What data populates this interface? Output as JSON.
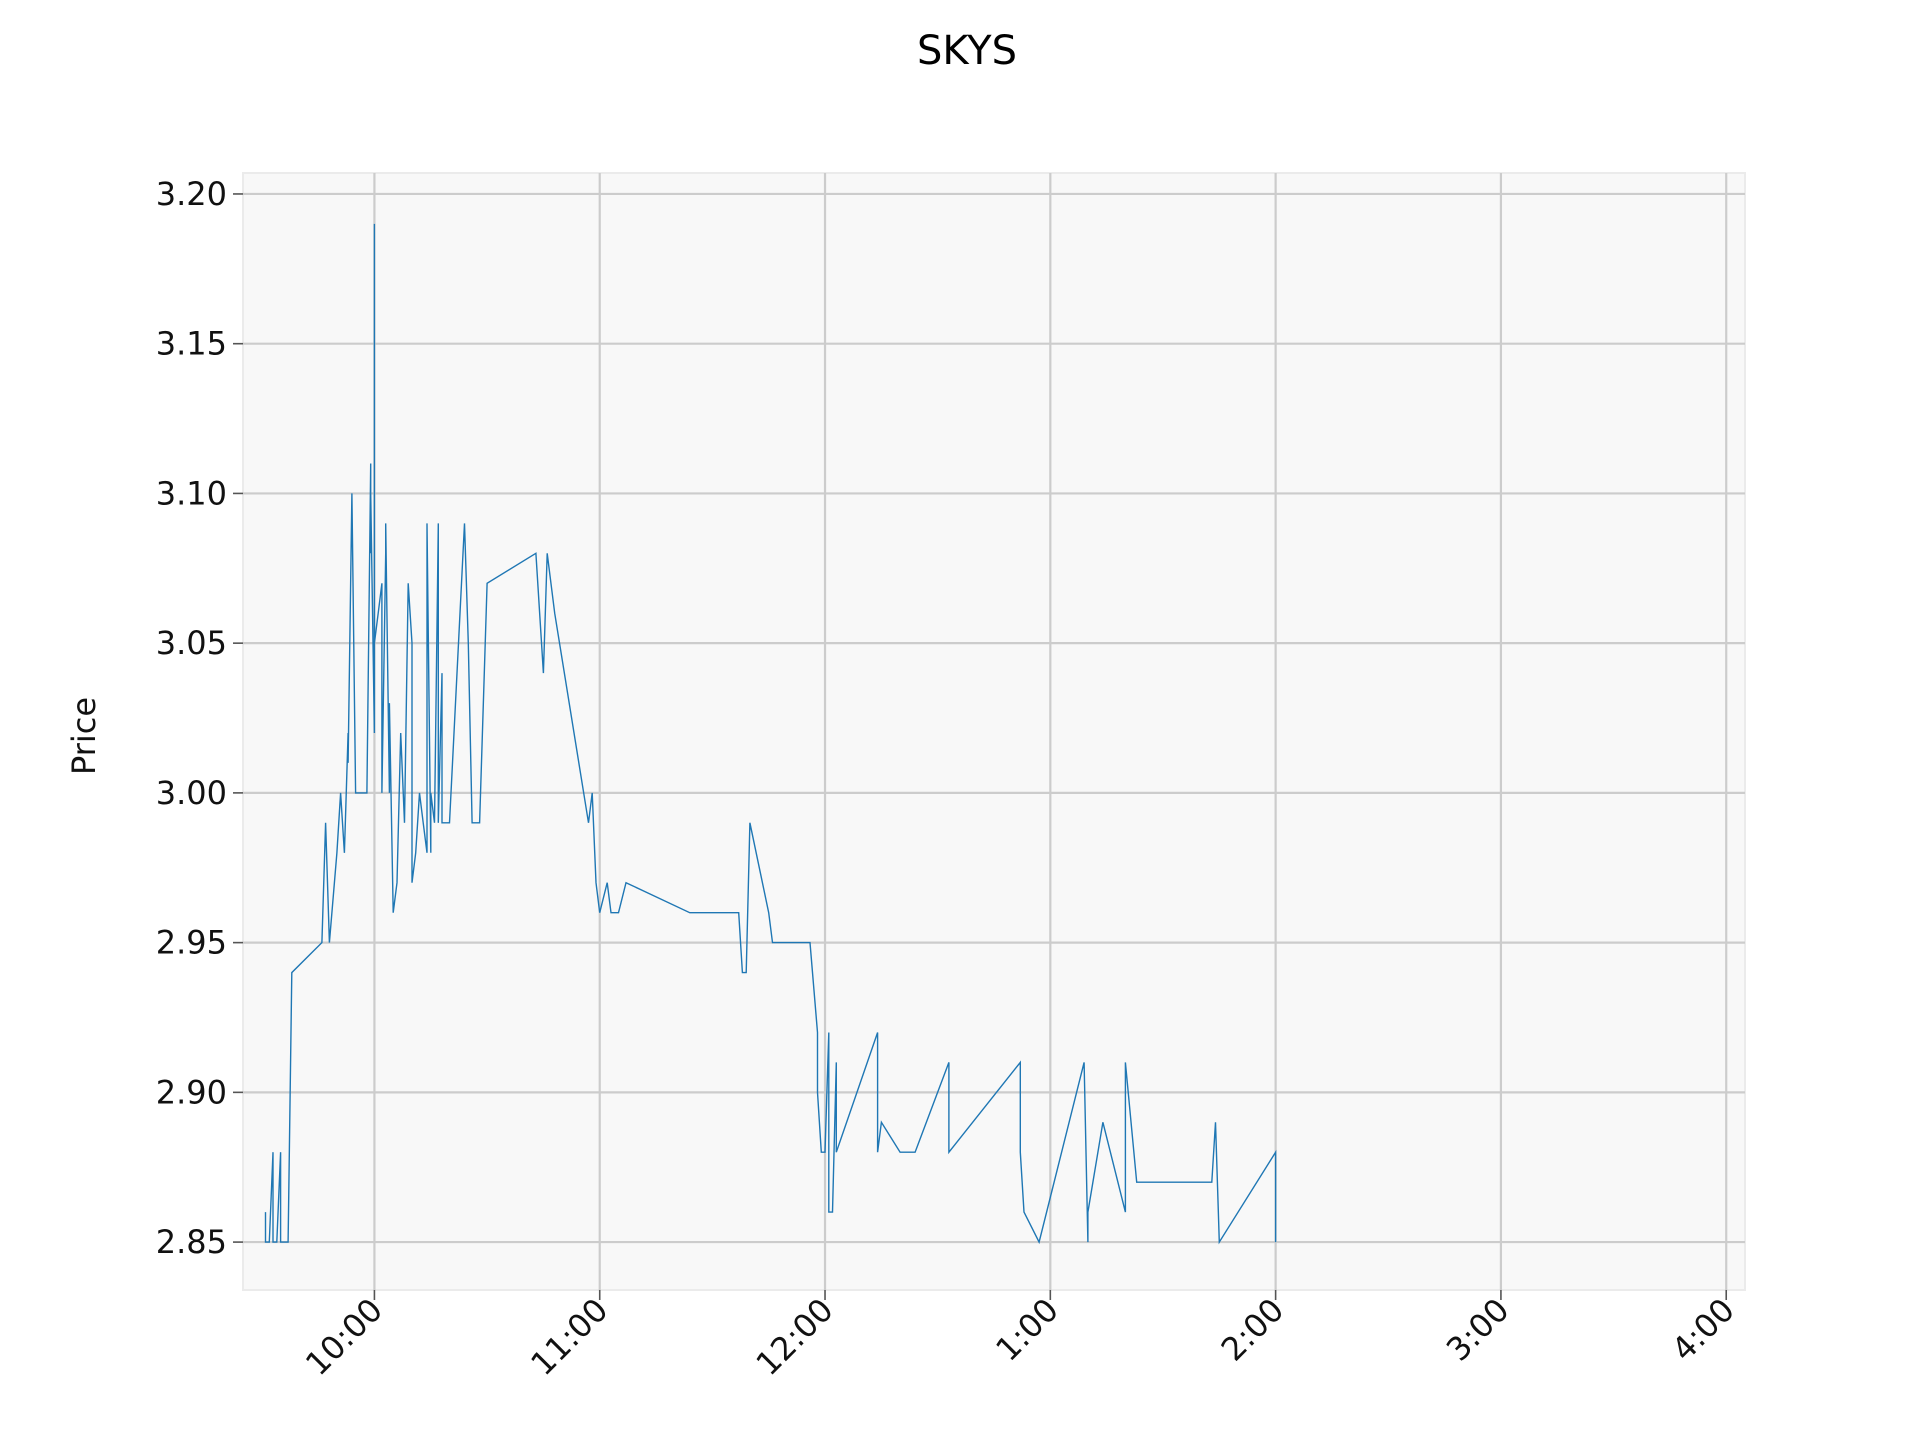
{
  "chart_data": {
    "type": "line",
    "title": "SKYS",
    "xlabel": "",
    "ylabel": "Price",
    "x_tick_labels": [
      "10:00",
      "11:00",
      "12:00",
      "1:00",
      "2:00",
      "3:00",
      "4:00"
    ],
    "y_tick_labels": [
      "2.85",
      "2.90",
      "2.95",
      "3.00",
      "3.05",
      "3.10",
      "3.15",
      "3.20"
    ],
    "y_ticks": [
      2.85,
      2.9,
      2.95,
      3.0,
      3.05,
      3.1,
      3.15,
      3.2
    ],
    "ylim": [
      2.834,
      3.207
    ],
    "x_ticks": [
      "10:00",
      "11:00",
      "12:00",
      "13:00",
      "14:00",
      "15:00",
      "16:00"
    ],
    "xlim": [
      "09:25",
      "16:05"
    ],
    "grid": true,
    "color": "#1f77b4",
    "series": [
      {
        "values": [
          [
            "09:31",
            2.86
          ],
          [
            "09:31",
            2.85
          ],
          [
            "09:32",
            2.85
          ],
          [
            "09:33",
            2.88
          ],
          [
            "09:33",
            2.85
          ],
          [
            "09:34",
            2.85
          ],
          [
            "09:35",
            2.88
          ],
          [
            "09:35",
            2.85
          ],
          [
            "09:36",
            2.85
          ],
          [
            "09:37",
            2.85
          ],
          [
            "09:38",
            2.94
          ],
          [
            "09:46",
            2.95
          ],
          [
            "09:47",
            2.99
          ],
          [
            "09:48",
            2.95
          ],
          [
            "09:50",
            2.98
          ],
          [
            "09:51",
            3.0
          ],
          [
            "09:52",
            2.98
          ],
          [
            "09:53",
            3.02
          ],
          [
            "09:53",
            3.01
          ],
          [
            "09:54",
            3.1
          ],
          [
            "09:55",
            3.0
          ],
          [
            "09:56",
            3.0
          ],
          [
            "09:57",
            3.0
          ],
          [
            "09:58",
            3.0
          ],
          [
            "09:59",
            3.11
          ],
          [
            "09:59",
            3.08
          ],
          [
            "09:59",
            3.1
          ],
          [
            "10:00",
            3.02
          ],
          [
            "10:00",
            3.19
          ],
          [
            "10:00",
            3.05
          ],
          [
            "10:01",
            3.06
          ],
          [
            "10:02",
            3.07
          ],
          [
            "10:02",
            3.0
          ],
          [
            "10:03",
            3.08
          ],
          [
            "10:03",
            3.09
          ],
          [
            "10:04",
            3.0
          ],
          [
            "10:04",
            3.03
          ],
          [
            "10:05",
            2.96
          ],
          [
            "10:05",
            2.96
          ],
          [
            "10:06",
            2.97
          ],
          [
            "10:07",
            3.02
          ],
          [
            "10:08",
            2.99
          ],
          [
            "10:09",
            3.07
          ],
          [
            "10:10",
            3.05
          ],
          [
            "10:10",
            2.97
          ],
          [
            "10:11",
            2.98
          ],
          [
            "10:12",
            3.0
          ],
          [
            "10:13",
            2.99
          ],
          [
            "10:14",
            2.98
          ],
          [
            "10:14",
            3.09
          ],
          [
            "10:15",
            2.98
          ],
          [
            "10:15",
            3.0
          ],
          [
            "10:16",
            2.99
          ],
          [
            "10:17",
            3.09
          ],
          [
            "10:17",
            2.99
          ],
          [
            "10:18",
            3.04
          ],
          [
            "10:18",
            2.99
          ],
          [
            "10:19",
            2.99
          ],
          [
            "10:20",
            2.99
          ],
          [
            "10:24",
            3.09
          ],
          [
            "10:25",
            3.05
          ],
          [
            "10:26",
            2.99
          ],
          [
            "10:27",
            2.99
          ],
          [
            "10:28",
            2.99
          ],
          [
            "10:30",
            3.07
          ],
          [
            "10:43",
            3.08
          ],
          [
            "10:45",
            3.04
          ],
          [
            "10:46",
            3.08
          ],
          [
            "10:48",
            3.06
          ],
          [
            "10:57",
            2.99
          ],
          [
            "10:58",
            3.0
          ],
          [
            "10:59",
            2.97
          ],
          [
            "11:00",
            2.96
          ],
          [
            "11:02",
            2.97
          ],
          [
            "11:03",
            2.96
          ],
          [
            "11:05",
            2.96
          ],
          [
            "11:07",
            2.97
          ],
          [
            "11:24",
            2.96
          ],
          [
            "11:37",
            2.96
          ],
          [
            "11:38",
            2.94
          ],
          [
            "11:39",
            2.94
          ],
          [
            "11:40",
            2.99
          ],
          [
            "11:45",
            2.96
          ],
          [
            "11:46",
            2.95
          ],
          [
            "11:56",
            2.95
          ],
          [
            "11:58",
            2.92
          ],
          [
            "11:58",
            2.9
          ],
          [
            "11:59",
            2.88
          ],
          [
            "12:00",
            2.88
          ],
          [
            "12:01",
            2.92
          ],
          [
            "12:01",
            2.86
          ],
          [
            "12:02",
            2.86
          ],
          [
            "12:03",
            2.91
          ],
          [
            "12:03",
            2.88
          ],
          [
            "12:14",
            2.92
          ],
          [
            "12:14",
            2.88
          ],
          [
            "12:15",
            2.89
          ],
          [
            "12:20",
            2.88
          ],
          [
            "12:24",
            2.88
          ],
          [
            "12:33",
            2.91
          ],
          [
            "12:33",
            2.88
          ],
          [
            "12:52",
            2.91
          ],
          [
            "12:52",
            2.88
          ],
          [
            "12:53",
            2.86
          ],
          [
            "12:57",
            2.85
          ],
          [
            "13:09",
            2.91
          ],
          [
            "13:10",
            2.85
          ],
          [
            "13:10",
            2.86
          ],
          [
            "13:14",
            2.89
          ],
          [
            "13:20",
            2.86
          ],
          [
            "13:20",
            2.91
          ],
          [
            "13:23",
            2.87
          ],
          [
            "13:43",
            2.87
          ],
          [
            "13:44",
            2.89
          ],
          [
            "13:45",
            2.85
          ],
          [
            "14:00",
            2.88
          ],
          [
            "14:00",
            2.85
          ]
        ]
      }
    ]
  }
}
